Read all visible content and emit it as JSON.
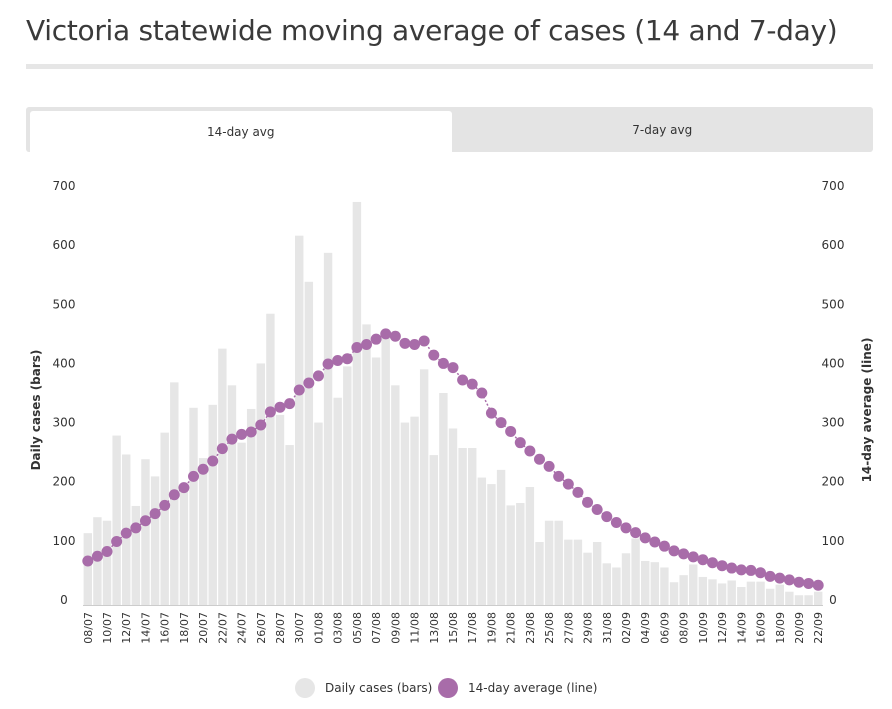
{
  "page": {
    "title": "Victoria statewide moving average of cases (14 and 7-day)"
  },
  "tabs": [
    {
      "label": "14-day avg",
      "active": true
    },
    {
      "label": "7-day avg",
      "active": false
    }
  ],
  "chart_data": {
    "type": "bar+line",
    "left_axis_label": "Daily cases (bars)",
    "right_axis_label": "14-day average (line)",
    "ylim": [
      0,
      700
    ],
    "yticks": [
      0,
      100,
      200,
      300,
      400,
      500,
      600,
      700
    ],
    "x": [
      "08/07",
      "09/07",
      "10/07",
      "11/07",
      "12/07",
      "13/07",
      "14/07",
      "15/07",
      "16/07",
      "17/07",
      "18/07",
      "19/07",
      "20/07",
      "21/07",
      "22/07",
      "23/07",
      "24/07",
      "25/07",
      "26/07",
      "27/07",
      "28/07",
      "29/07",
      "30/07",
      "31/07",
      "01/08",
      "02/08",
      "03/08",
      "04/08",
      "05/08",
      "06/08",
      "07/08",
      "08/08",
      "09/08",
      "10/08",
      "11/08",
      "12/08",
      "13/08",
      "14/08",
      "15/08",
      "16/08",
      "17/08",
      "18/08",
      "19/08",
      "20/08",
      "21/08",
      "22/08",
      "23/08",
      "24/08",
      "25/08",
      "26/08",
      "27/08",
      "28/08",
      "29/08",
      "30/08",
      "31/08",
      "01/09",
      "02/09",
      "03/09",
      "04/09",
      "05/09",
      "06/09",
      "07/09",
      "08/09",
      "09/09",
      "10/09",
      "11/09",
      "12/09",
      "13/09",
      "14/09",
      "15/09",
      "16/09",
      "17/09",
      "18/09",
      "19/09",
      "20/09",
      "21/09",
      "22/09"
    ],
    "x_tick_labels": [
      "08/07",
      "10/07",
      "12/07",
      "14/07",
      "16/07",
      "18/07",
      "20/07",
      "22/07",
      "24/07",
      "26/07",
      "28/07",
      "30/07",
      "01/08",
      "03/08",
      "05/08",
      "07/08",
      "09/08",
      "11/08",
      "13/08",
      "15/08",
      "17/08",
      "19/08",
      "21/08",
      "23/08",
      "25/08",
      "27/08",
      "29/08",
      "31/08",
      "02/09",
      "04/09",
      "06/09",
      "08/09",
      "10/09",
      "12/09",
      "14/09",
      "16/09",
      "18/09",
      "20/09",
      "22/09"
    ],
    "series": [
      {
        "name": "Daily cases (bars)",
        "type": "bar",
        "color": "#e6e6e6",
        "values": [
          113,
          140,
          134,
          278,
          246,
          159,
          238,
          209,
          283,
          368,
          196,
          325,
          240,
          330,
          425,
          363,
          266,
          323,
          400,
          484,
          313,
          262,
          616,
          538,
          300,
          587,
          342,
          395,
          673,
          466,
          410,
          450,
          363,
          300,
          310,
          390,
          245,
          350,
          290,
          257,
          257,
          207,
          196,
          220,
          160,
          164,
          191,
          98,
          134,
          134,
          102,
          102,
          80,
          98,
          62,
          55,
          79,
          104,
          66,
          64,
          55,
          30,
          42,
          60,
          39,
          35,
          28,
          33,
          22,
          31,
          31,
          19,
          26,
          14,
          8,
          8,
          14
        ]
      },
      {
        "name": "14-day average (line)",
        "type": "line",
        "color": "#a86ca9",
        "values": [
          66,
          74,
          82,
          99,
          113,
          122,
          134,
          146,
          160,
          178,
          190,
          209,
          221,
          235,
          256,
          272,
          280,
          284,
          296,
          318,
          326,
          332,
          355,
          367,
          379,
          399,
          405,
          408,
          427,
          432,
          441,
          450,
          446,
          434,
          432,
          438,
          414,
          400,
          393,
          372,
          365,
          350,
          316,
          300,
          285,
          266,
          252,
          238,
          226,
          209,
          196,
          182,
          165,
          153,
          141,
          131,
          122,
          114,
          105,
          98,
          91,
          83,
          78,
          73,
          68,
          63,
          58,
          54,
          51,
          50,
          46,
          40,
          37,
          34,
          30,
          28,
          25
        ]
      }
    ],
    "legend": [
      "Daily cases (bars)",
      "14-day average (line)"
    ],
    "legend_position": "bottom-center",
    "grid": false
  }
}
